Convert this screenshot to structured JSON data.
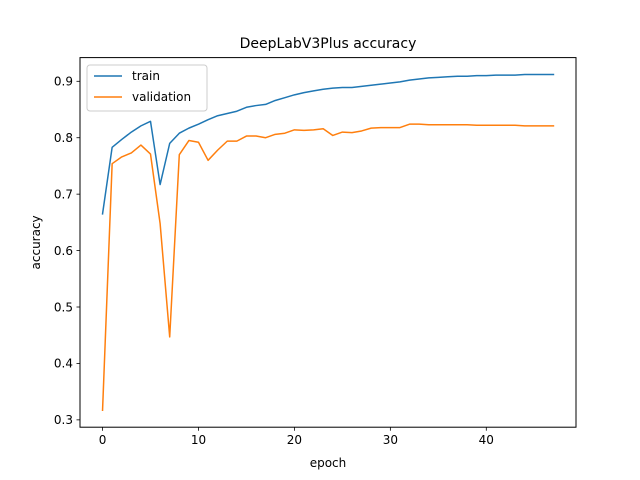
{
  "chart_data": {
    "type": "line",
    "title": "DeepLabV3Plus accuracy",
    "xlabel": "epoch",
    "ylabel": "accuracy",
    "xlim": [
      -2.35,
      49.35
    ],
    "ylim": [
      0.287,
      0.942
    ],
    "xticks": [
      0,
      10,
      20,
      30,
      40
    ],
    "yticks": [
      0.3,
      0.4,
      0.5,
      0.6,
      0.7,
      0.8,
      0.9
    ],
    "xtick_labels": [
      "0",
      "10",
      "20",
      "30",
      "40"
    ],
    "ytick_labels": [
      "0.3",
      "0.4",
      "0.5",
      "0.6",
      "0.7",
      "0.8",
      "0.9"
    ],
    "legend_position": "top-left",
    "x": [
      0,
      1,
      2,
      3,
      4,
      5,
      6,
      7,
      8,
      9,
      10,
      11,
      12,
      13,
      14,
      15,
      16,
      17,
      18,
      19,
      20,
      21,
      22,
      23,
      24,
      25,
      26,
      27,
      28,
      29,
      30,
      31,
      32,
      33,
      34,
      35,
      36,
      37,
      38,
      39,
      40,
      41,
      42,
      43,
      44,
      45,
      46,
      47
    ],
    "series": [
      {
        "name": "train",
        "color": "#1f77b4",
        "values": [
          0.665,
          0.783,
          0.797,
          0.81,
          0.821,
          0.829,
          0.717,
          0.79,
          0.808,
          0.817,
          0.824,
          0.832,
          0.839,
          0.843,
          0.847,
          0.854,
          0.857,
          0.859,
          0.866,
          0.871,
          0.876,
          0.88,
          0.883,
          0.886,
          0.888,
          0.889,
          0.889,
          0.891,
          0.893,
          0.895,
          0.897,
          0.899,
          0.902,
          0.904,
          0.906,
          0.907,
          0.908,
          0.909,
          0.909,
          0.91,
          0.91,
          0.911,
          0.911,
          0.911,
          0.912,
          0.912,
          0.912,
          0.912
        ]
      },
      {
        "name": "validation",
        "color": "#ff7f0e",
        "values": [
          0.317,
          0.754,
          0.766,
          0.773,
          0.787,
          0.771,
          0.648,
          0.447,
          0.77,
          0.795,
          0.792,
          0.76,
          0.778,
          0.794,
          0.794,
          0.803,
          0.803,
          0.8,
          0.806,
          0.808,
          0.814,
          0.813,
          0.814,
          0.816,
          0.804,
          0.81,
          0.809,
          0.812,
          0.817,
          0.818,
          0.818,
          0.818,
          0.824,
          0.824,
          0.823,
          0.823,
          0.823,
          0.823,
          0.823,
          0.822,
          0.822,
          0.822,
          0.822,
          0.822,
          0.821,
          0.821,
          0.821,
          0.821
        ]
      }
    ]
  }
}
